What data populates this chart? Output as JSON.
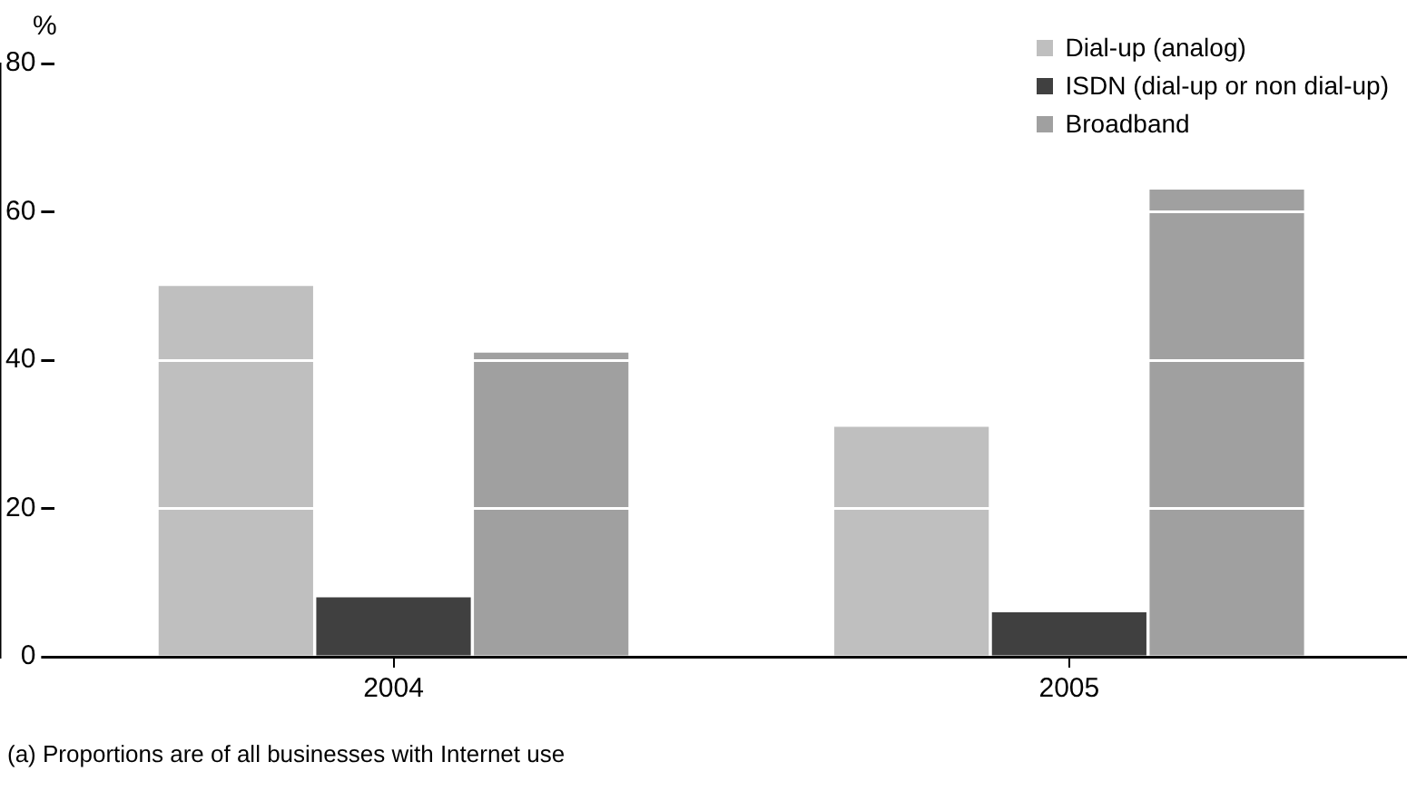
{
  "chart_data": {
    "type": "bar",
    "ylabel": "%",
    "categories": [
      "2004",
      "2005"
    ],
    "series": [
      {
        "name": "Dial-up (analog)",
        "color": "#bfbfbf",
        "values": [
          50,
          31
        ]
      },
      {
        "name": "ISDN (dial-up or non dial-up)",
        "color": "#404040",
        "values": [
          8,
          6
        ]
      },
      {
        "name": "Broadband",
        "color": "#a0a0a0",
        "values": [
          41,
          63
        ]
      }
    ],
    "ylim": [
      0,
      80
    ],
    "yticks": [
      0,
      20,
      40,
      60,
      80
    ],
    "grid": "y",
    "legend": "top right",
    "annotations": [
      "(a) Proportions are of all businesses with Internet use"
    ]
  }
}
